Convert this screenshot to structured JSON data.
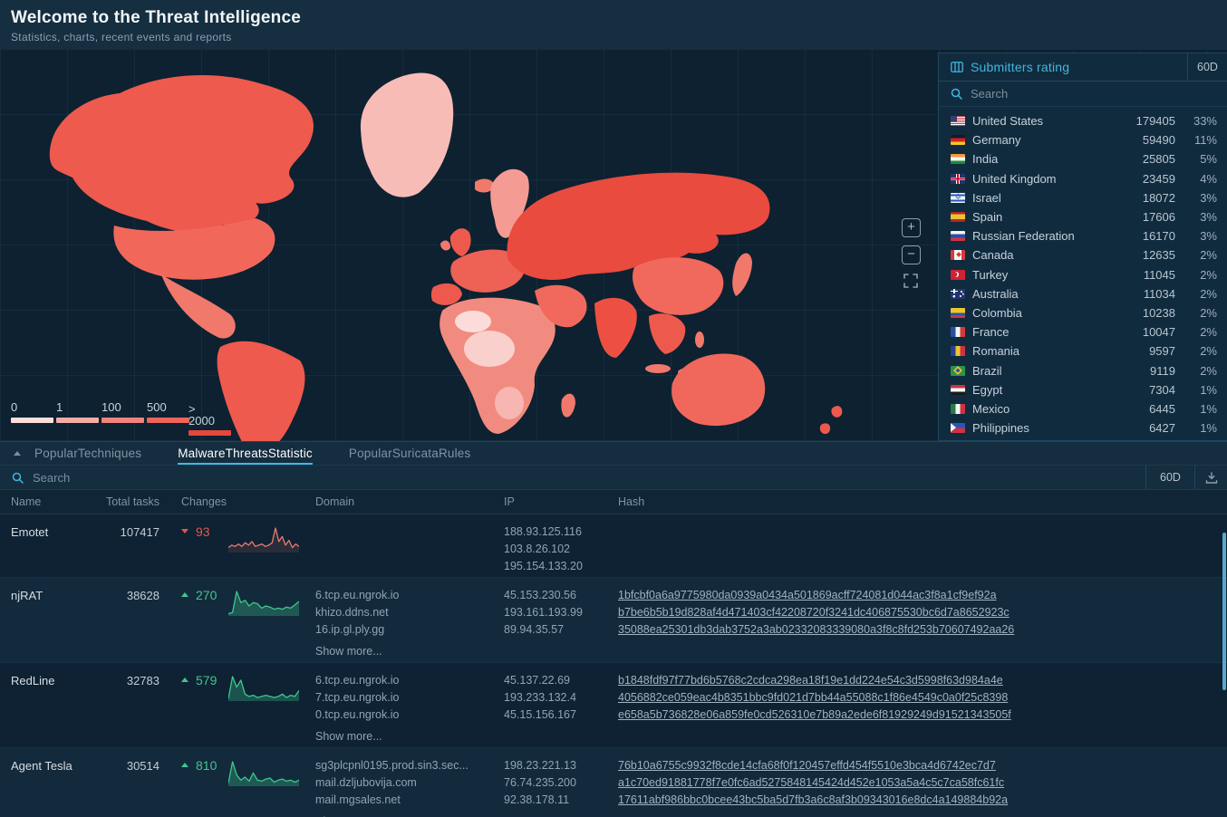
{
  "header": {
    "title": "Welcome to the Threat Intelligence",
    "subtitle": "Statistics, charts, recent events and reports"
  },
  "map": {
    "legend": [
      {
        "label": "0",
        "color": "#FBDEDC"
      },
      {
        "label": "1",
        "color": "#F5ACA7"
      },
      {
        "label": "100",
        "color": "#F0837B"
      },
      {
        "label": "500",
        "color": "#ED6458"
      },
      {
        "label_top": ">",
        "label": "2000",
        "color": "#E4473C"
      }
    ],
    "controls": {
      "zoom_in": "+",
      "zoom_out": "−"
    }
  },
  "submitters": {
    "title": "Submitters rating",
    "period": "60D",
    "search_placeholder": "Search",
    "countries": [
      {
        "flag": "us",
        "name": "United States",
        "count": "179405",
        "pct": "33%"
      },
      {
        "flag": "de",
        "name": "Germany",
        "count": "59490",
        "pct": "11%"
      },
      {
        "flag": "in",
        "name": "India",
        "count": "25805",
        "pct": "5%"
      },
      {
        "flag": "gb",
        "name": "United Kingdom",
        "count": "23459",
        "pct": "4%"
      },
      {
        "flag": "il",
        "name": "Israel",
        "count": "18072",
        "pct": "3%"
      },
      {
        "flag": "es",
        "name": "Spain",
        "count": "17606",
        "pct": "3%"
      },
      {
        "flag": "ru",
        "name": "Russian Federation",
        "count": "16170",
        "pct": "3%"
      },
      {
        "flag": "ca",
        "name": "Canada",
        "count": "12635",
        "pct": "2%"
      },
      {
        "flag": "tr",
        "name": "Turkey",
        "count": "11045",
        "pct": "2%"
      },
      {
        "flag": "au",
        "name": "Australia",
        "count": "11034",
        "pct": "2%"
      },
      {
        "flag": "co",
        "name": "Colombia",
        "count": "10238",
        "pct": "2%"
      },
      {
        "flag": "fr",
        "name": "France",
        "count": "10047",
        "pct": "2%"
      },
      {
        "flag": "ro",
        "name": "Romania",
        "count": "9597",
        "pct": "2%"
      },
      {
        "flag": "br",
        "name": "Brazil",
        "count": "9119",
        "pct": "2%"
      },
      {
        "flag": "eg",
        "name": "Egypt",
        "count": "7304",
        "pct": "1%"
      },
      {
        "flag": "mx",
        "name": "Mexico",
        "count": "6445",
        "pct": "1%"
      },
      {
        "flag": "ph",
        "name": "Philippines",
        "count": "6427",
        "pct": "1%"
      }
    ]
  },
  "tabs": [
    {
      "label": "PopularTechniques",
      "active": false
    },
    {
      "label": "MalwareThreatsStatistic",
      "active": true
    },
    {
      "label": "PopularSuricataRules",
      "active": false
    }
  ],
  "toolbar": {
    "search_placeholder": "Search",
    "period": "60D"
  },
  "table": {
    "columns": [
      "Name",
      "Total tasks",
      "Changes",
      "Domain",
      "IP",
      "Hash"
    ],
    "show_more_label": "Show more...",
    "rows": [
      {
        "name": "Emotet",
        "total": "107417",
        "change": "93",
        "direction": "down",
        "domains": [],
        "show_more_domains": false,
        "ips": [
          "188.93.125.116",
          "103.8.26.102",
          "195.154.133.20"
        ],
        "hashes": []
      },
      {
        "name": "njRAT",
        "total": "38628",
        "change": "270",
        "direction": "up",
        "domains": [
          "6.tcp.eu.ngrok.io",
          "khizo.ddns.net",
          "16.ip.gl.ply.gg"
        ],
        "show_more_domains": true,
        "ips": [
          "45.153.230.56",
          "193.161.193.99",
          "89.94.35.57"
        ],
        "hashes": [
          "1bfcbf0a6a9775980da0939a0434a501869acff724081d044ac3f8a1cf9ef92a",
          "b7be6b5b19d828af4d471403cf42208720f3241dc406875530bc6d7a8652923c",
          "35088ea25301db3dab3752a3ab02332083339080a3f8c8fd253b70607492aa26"
        ]
      },
      {
        "name": "RedLine",
        "total": "32783",
        "change": "579",
        "direction": "up",
        "domains": [
          "6.tcp.eu.ngrok.io",
          "7.tcp.eu.ngrok.io",
          "0.tcp.eu.ngrok.io"
        ],
        "show_more_domains": true,
        "ips": [
          "45.137.22.69",
          "193.233.132.4",
          "45.15.156.167"
        ],
        "hashes": [
          "b1848fdf97f77bd6b5768c2cdca298ea18f19e1dd224e54c3d5998f63d984a4e",
          "4056882ce059eac4b8351bbc9fd021d7bb44a55088c1f86e4549c0a0f25c8398",
          "e658a5b736828e06a859fe0cd526310e7b89a2ede6f81929249d91521343505f"
        ]
      },
      {
        "name": "Agent Tesla",
        "total": "30514",
        "change": "810",
        "direction": "up",
        "domains": [
          "sg3plcpnl0195.prod.sin3.sec...",
          "mail.dzljubovija.com",
          "mail.mgsales.net"
        ],
        "show_more_domains": true,
        "ips": [
          "198.23.221.13",
          "76.74.235.200",
          "92.38.178.11"
        ],
        "hashes": [
          "76b10a6755c9932f8cde14cfa68f0f120457effd454f5510e3bca4d6742ec7d7",
          "a1c70ed91881778f7e0fc6ad5275848145424d452e1053a5a4c5c7ca58fc61fc",
          "17611abf986bbc0bcee43bc5ba5d7fb3a6c8af3b09343016e8dc4a149884b92a"
        ]
      }
    ]
  },
  "chart_data": {
    "type": "line",
    "description": "Task-volume sparklines per malware family over the 60D period",
    "series": [
      {
        "name": "Emotet",
        "color": "#EB7A6F",
        "fill_opacity": 0.12,
        "values": [
          4,
          6,
          5,
          7,
          5,
          8,
          6,
          9,
          5,
          6,
          7,
          5,
          6,
          8,
          20,
          9,
          13,
          6,
          10,
          4,
          7,
          5
        ]
      },
      {
        "name": "njRAT",
        "color": "#3EC78F",
        "fill_opacity": 0.3,
        "values": [
          2,
          3,
          22,
          12,
          14,
          9,
          12,
          11,
          7,
          9,
          8,
          6,
          7,
          6,
          8,
          7,
          10,
          13
        ]
      },
      {
        "name": "RedLine",
        "color": "#3EC78F",
        "fill_opacity": 0.3,
        "values": [
          2,
          21,
          12,
          18,
          6,
          4,
          5,
          3,
          4,
          5,
          4,
          3,
          4,
          6,
          3,
          5,
          4,
          9
        ]
      },
      {
        "name": "Agent Tesla",
        "color": "#3EC78F",
        "fill_opacity": 0.3,
        "values": [
          3,
          24,
          11,
          6,
          9,
          5,
          13,
          6,
          5,
          7,
          8,
          4,
          6,
          7,
          5,
          6,
          4,
          6
        ]
      }
    ]
  }
}
